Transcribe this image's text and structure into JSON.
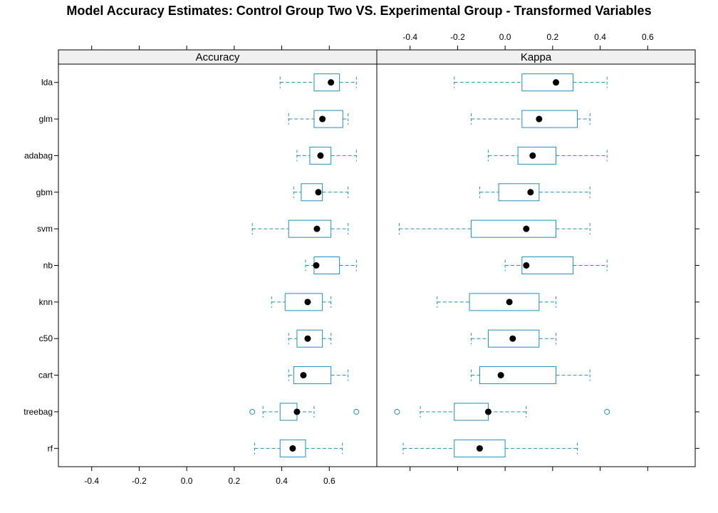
{
  "chart_data": {
    "type": "boxplot",
    "title": "Model Accuracy Estimates: Control Group Two VS. Experimental Group - Transformed Variables",
    "models": [
      "lda",
      "glm",
      "adabag",
      "gbm",
      "svm",
      "nb",
      "knn",
      "c50",
      "cart",
      "treebag",
      "rf"
    ],
    "x_ticks": [
      -0.4,
      -0.2,
      0.0,
      0.2,
      0.4,
      0.6
    ],
    "x_tick_labels": [
      "-0.4",
      "-0.2",
      "0.0",
      "0.2",
      "0.4",
      "0.6"
    ],
    "x_range": [
      -0.54,
      0.8
    ],
    "colors": {
      "box": "#1f8fb8",
      "median": "#000000",
      "strip": "#f0f0f0"
    },
    "panels": [
      {
        "name": "Accuracy",
        "axis_position": "bottom",
        "stats": [
          {
            "model": "lda",
            "wlo": 0.393,
            "q1": 0.536,
            "med": 0.607,
            "q3": 0.643,
            "whi": 0.714,
            "outliers": []
          },
          {
            "model": "glm",
            "wlo": 0.429,
            "q1": 0.536,
            "med": 0.571,
            "q3": 0.657,
            "whi": 0.679,
            "outliers": []
          },
          {
            "model": "adabag",
            "wlo": 0.464,
            "q1": 0.518,
            "med": 0.563,
            "q3": 0.607,
            "whi": 0.714,
            "outliers": []
          },
          {
            "model": "gbm",
            "wlo": 0.45,
            "q1": 0.482,
            "med": 0.554,
            "q3": 0.571,
            "whi": 0.679,
            "outliers": []
          },
          {
            "model": "svm",
            "wlo": 0.276,
            "q1": 0.429,
            "med": 0.548,
            "q3": 0.607,
            "whi": 0.679,
            "outliers": []
          },
          {
            "model": "nb",
            "wlo": 0.5,
            "q1": 0.536,
            "med": 0.545,
            "q3": 0.643,
            "whi": 0.714,
            "outliers": []
          },
          {
            "model": "knn",
            "wlo": 0.357,
            "q1": 0.414,
            "med": 0.509,
            "q3": 0.571,
            "whi": 0.607,
            "outliers": []
          },
          {
            "model": "c50",
            "wlo": 0.429,
            "q1": 0.464,
            "med": 0.509,
            "q3": 0.571,
            "whi": 0.607,
            "outliers": []
          },
          {
            "model": "cart",
            "wlo": 0.429,
            "q1": 0.45,
            "med": 0.491,
            "q3": 0.607,
            "whi": 0.679,
            "outliers": []
          },
          {
            "model": "treebag",
            "wlo": 0.321,
            "q1": 0.393,
            "med": 0.464,
            "q3": 0.464,
            "whi": 0.536,
            "outliers": [
              0.276,
              0.714
            ]
          },
          {
            "model": "rf",
            "wlo": 0.286,
            "q1": 0.393,
            "med": 0.446,
            "q3": 0.5,
            "whi": 0.655,
            "outliers": []
          }
        ]
      },
      {
        "name": "Kappa",
        "axis_position": "top",
        "stats": [
          {
            "model": "lda",
            "wlo": -0.214,
            "q1": 0.071,
            "med": 0.214,
            "q3": 0.286,
            "whi": 0.429,
            "outliers": []
          },
          {
            "model": "glm",
            "wlo": -0.143,
            "q1": 0.071,
            "med": 0.143,
            "q3": 0.304,
            "whi": 0.357,
            "outliers": []
          },
          {
            "model": "adabag",
            "wlo": -0.071,
            "q1": 0.054,
            "med": 0.116,
            "q3": 0.214,
            "whi": 0.429,
            "outliers": []
          },
          {
            "model": "gbm",
            "wlo": -0.107,
            "q1": -0.027,
            "med": 0.107,
            "q3": 0.143,
            "whi": 0.357,
            "outliers": []
          },
          {
            "model": "svm",
            "wlo": -0.446,
            "q1": -0.143,
            "med": 0.089,
            "q3": 0.214,
            "whi": 0.357,
            "outliers": []
          },
          {
            "model": "nb",
            "wlo": 0.0,
            "q1": 0.071,
            "med": 0.089,
            "q3": 0.286,
            "whi": 0.429,
            "outliers": []
          },
          {
            "model": "knn",
            "wlo": -0.286,
            "q1": -0.15,
            "med": 0.018,
            "q3": 0.143,
            "whi": 0.214,
            "outliers": []
          },
          {
            "model": "c50",
            "wlo": -0.143,
            "q1": -0.071,
            "med": 0.032,
            "q3": 0.143,
            "whi": 0.214,
            "outliers": []
          },
          {
            "model": "cart",
            "wlo": -0.143,
            "q1": -0.107,
            "med": -0.018,
            "q3": 0.214,
            "whi": 0.357,
            "outliers": []
          },
          {
            "model": "treebag",
            "wlo": -0.357,
            "q1": -0.214,
            "med": -0.071,
            "q3": -0.071,
            "whi": 0.089,
            "outliers": [
              -0.455,
              0.429
            ]
          },
          {
            "model": "rf",
            "wlo": -0.429,
            "q1": -0.214,
            "med": -0.107,
            "q3": 0.0,
            "whi": 0.304,
            "outliers": []
          }
        ]
      }
    ]
  }
}
